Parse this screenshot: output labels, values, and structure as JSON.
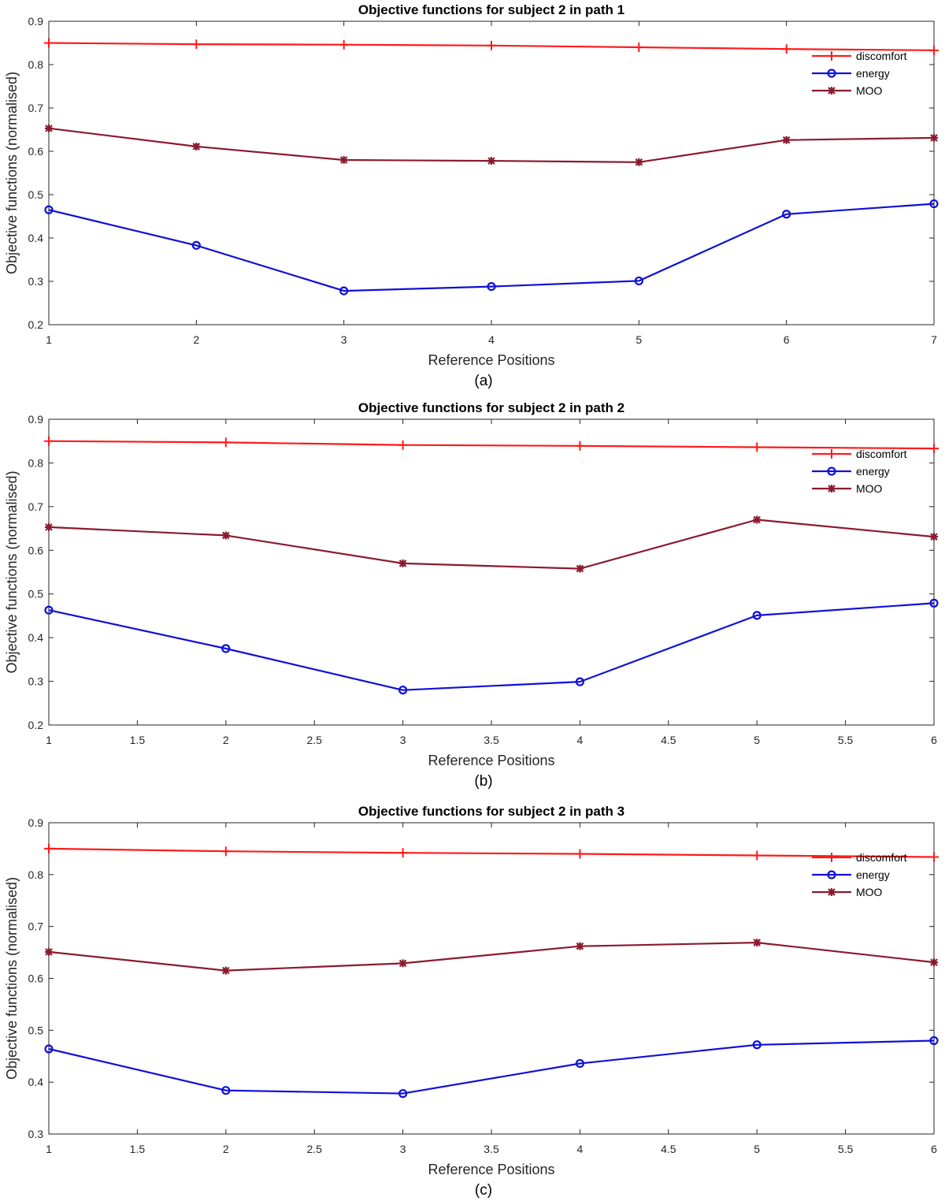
{
  "colors": {
    "discomfort": "#ff1a1a",
    "energy": "#1010d8",
    "moo": "#8b1a2e"
  },
  "chart_data": [
    {
      "type": "line",
      "title": "Objective functions for subject 2 in path 1",
      "xlabel": "Reference Positions",
      "ylabel": "Objective functions (normalised)",
      "caption": "(a)",
      "xlim": [
        1,
        7
      ],
      "ylim": [
        0.2,
        0.9
      ],
      "xticks": [
        1,
        2,
        3,
        4,
        5,
        6,
        7
      ],
      "xtick_labels": [
        "1",
        "2",
        "3",
        "4",
        "5",
        "6",
        "7"
      ],
      "yticks": [
        0.2,
        0.3,
        0.4,
        0.5,
        0.6,
        0.7,
        0.8,
        0.9
      ],
      "ytick_labels": [
        "0.2",
        "0.3",
        "0.4",
        "0.5",
        "0.6",
        "0.7",
        "0.8",
        "0.9"
      ],
      "legend_position": "top-right",
      "x": [
        1,
        2,
        3,
        4,
        5,
        6,
        7
      ],
      "series": [
        {
          "name": "discomfort",
          "marker": "plus",
          "values": [
            0.85,
            0.847,
            0.846,
            0.844,
            0.84,
            0.836,
            0.833
          ]
        },
        {
          "name": "energy",
          "marker": "circle",
          "values": [
            0.465,
            0.383,
            0.278,
            0.288,
            0.301,
            0.455,
            0.479
          ]
        },
        {
          "name": "MOO",
          "marker": "star",
          "values": [
            0.653,
            0.611,
            0.58,
            0.578,
            0.575,
            0.626,
            0.631
          ]
        }
      ]
    },
    {
      "type": "line",
      "title": "Objective functions for subject 2 in path 2",
      "xlabel": "Reference Positions",
      "ylabel": "Objective functions (normalised)",
      "caption": "(b)",
      "xlim": [
        1,
        6
      ],
      "ylim": [
        0.2,
        0.9
      ],
      "xticks": [
        1,
        1.5,
        2,
        2.5,
        3,
        3.5,
        4,
        4.5,
        5,
        5.5,
        6
      ],
      "xtick_labels": [
        "1",
        "1.5",
        "2",
        "2.5",
        "3",
        "3.5",
        "4",
        "4.5",
        "5",
        "5.5",
        "6"
      ],
      "yticks": [
        0.2,
        0.3,
        0.4,
        0.5,
        0.6,
        0.7,
        0.8,
        0.9
      ],
      "ytick_labels": [
        "0.2",
        "0.3",
        "0.4",
        "0.5",
        "0.6",
        "0.7",
        "0.8",
        "0.9"
      ],
      "legend_position": "top-right",
      "x": [
        1,
        2,
        3,
        4,
        5,
        6
      ],
      "series": [
        {
          "name": "discomfort",
          "marker": "plus",
          "values": [
            0.85,
            0.847,
            0.841,
            0.839,
            0.836,
            0.833
          ]
        },
        {
          "name": "energy",
          "marker": "circle",
          "values": [
            0.463,
            0.375,
            0.28,
            0.299,
            0.451,
            0.479
          ]
        },
        {
          "name": "MOO",
          "marker": "star",
          "values": [
            0.653,
            0.634,
            0.57,
            0.558,
            0.67,
            0.631
          ]
        }
      ]
    },
    {
      "type": "line",
      "title": "Objective functions for subject 2 in path 3",
      "xlabel": "Reference Positions",
      "ylabel": "Objective functions (normalised)",
      "caption": "(c)",
      "xlim": [
        1,
        6
      ],
      "ylim": [
        0.3,
        0.9
      ],
      "xticks": [
        1,
        1.5,
        2,
        2.5,
        3,
        3.5,
        4,
        4.5,
        5,
        5.5,
        6
      ],
      "xtick_labels": [
        "1",
        "1.5",
        "2",
        "2.5",
        "3",
        "3.5",
        "4",
        "4.5",
        "5",
        "5.5",
        "6"
      ],
      "yticks": [
        0.3,
        0.4,
        0.5,
        0.6,
        0.7,
        0.8,
        0.9
      ],
      "ytick_labels": [
        "0.3",
        "0.4",
        "0.5",
        "0.6",
        "0.7",
        "0.8",
        "0.9"
      ],
      "legend_position": "top-right",
      "x": [
        1,
        2,
        3,
        4,
        5,
        6
      ],
      "series": [
        {
          "name": "discomfort",
          "marker": "plus",
          "values": [
            0.85,
            0.845,
            0.842,
            0.84,
            0.837,
            0.834
          ]
        },
        {
          "name": "energy",
          "marker": "circle",
          "values": [
            0.464,
            0.384,
            0.378,
            0.436,
            0.472,
            0.48
          ]
        },
        {
          "name": "MOO",
          "marker": "star",
          "values": [
            0.651,
            0.615,
            0.629,
            0.662,
            0.669,
            0.631
          ]
        }
      ]
    }
  ]
}
